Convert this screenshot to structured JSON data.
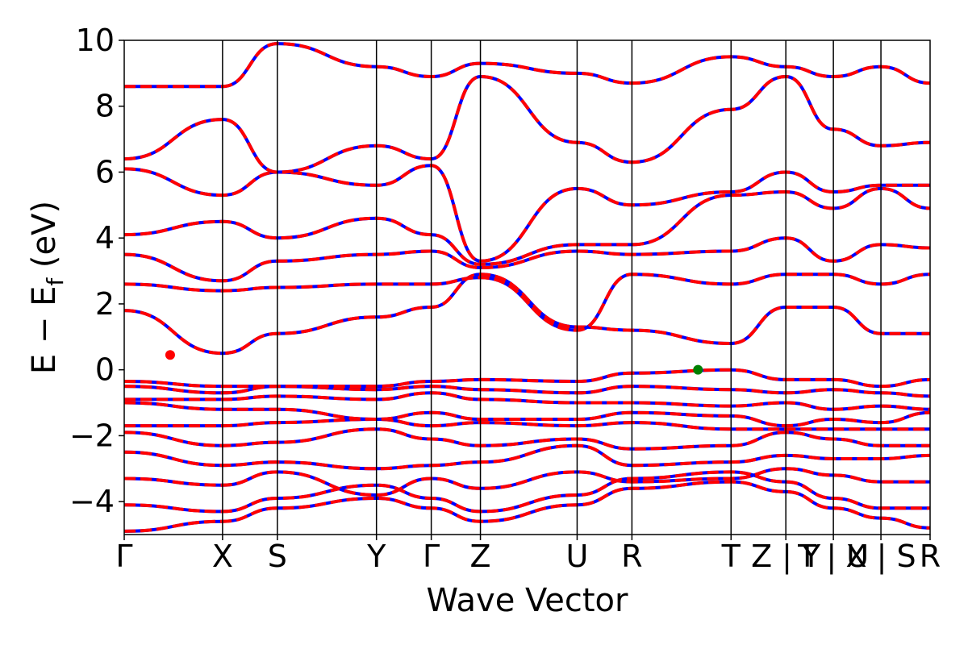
{
  "chart_data": {
    "type": "line",
    "xlabel": "Wave Vector",
    "ylabel": "E − E",
    "ylabel_subscript": "f",
    "ylabel_unit": "(eV)",
    "ylim": [
      -5,
      10
    ],
    "yticks": [
      -4,
      -2,
      0,
      2,
      4,
      6,
      8,
      10
    ],
    "ytick_labels": [
      "−4",
      "−2",
      "0",
      "2",
      "4",
      "6",
      "8",
      "10"
    ],
    "xlim": [
      0,
      1
    ],
    "grid": false,
    "legend": "none",
    "high_symmetry_points": [
      {
        "label": "Γ",
        "x": 0.0
      },
      {
        "label": "X",
        "x": 0.122
      },
      {
        "label": "S",
        "x": 0.19
      },
      {
        "label": "Y",
        "x": 0.313
      },
      {
        "label": "Γ",
        "x": 0.381
      },
      {
        "label": "Z",
        "x": 0.442
      },
      {
        "label": "U",
        "x": 0.562
      },
      {
        "label": "R",
        "x": 0.63
      },
      {
        "label": "T",
        "x": 0.753
      },
      {
        "label": "Z | Y",
        "x": 0.821
      },
      {
        "label": "T | U",
        "x": 0.88
      },
      {
        "label": "X | S",
        "x": 0.939
      },
      {
        "label": "R",
        "x": 1.0
      }
    ],
    "series_colors": {
      "primary": "#ff0000",
      "overlay": "#0000ff"
    },
    "markers": [
      {
        "name": "cbm",
        "x": 0.057,
        "y": 0.45,
        "color": "#ff0000"
      },
      {
        "name": "vbm",
        "x": 0.712,
        "y": 0.0,
        "color": "#008000"
      }
    ],
    "bands": [
      [
        -4.9,
        -4.6,
        -4.2,
        -3.9,
        -4.2,
        -4.6,
        -4.1,
        -3.6,
        -3.4,
        -3.7,
        -4.2,
        -4.5,
        -4.8
      ],
      [
        -4.1,
        -4.3,
        -3.9,
        -3.5,
        -3.9,
        -4.3,
        -3.8,
        -3.3,
        -3.1,
        -3.4,
        -3.9,
        -4.2,
        -4.2
      ],
      [
        -3.3,
        -3.5,
        -3.1,
        -3.8,
        -3.3,
        -3.6,
        -3.1,
        -3.4,
        -3.3,
        -3.0,
        -3.2,
        -3.4,
        -3.4
      ],
      [
        -2.5,
        -2.9,
        -2.8,
        -3.0,
        -2.9,
        -2.8,
        -2.3,
        -2.9,
        -2.8,
        -2.6,
        -2.7,
        -2.7,
        -2.6
      ],
      [
        -1.9,
        -2.3,
        -2.2,
        -1.8,
        -2.1,
        -2.3,
        -2.1,
        -2.4,
        -2.3,
        -1.9,
        -2.1,
        -2.3,
        -2.3
      ],
      [
        -1.7,
        -1.7,
        -1.6,
        -1.5,
        -1.7,
        -1.6,
        -1.7,
        -1.6,
        -1.8,
        -1.8,
        -1.8,
        -1.8,
        -1.8
      ],
      [
        -1.0,
        -1.2,
        -1.2,
        -1.5,
        -1.3,
        -1.5,
        -1.5,
        -1.3,
        -1.4,
        -1.7,
        -1.5,
        -1.6,
        -1.3
      ],
      [
        -0.9,
        -0.9,
        -0.8,
        -0.9,
        -0.7,
        -0.9,
        -1.0,
        -1.0,
        -1.1,
        -1.0,
        -1.2,
        -1.1,
        -1.2
      ],
      [
        -0.5,
        -0.7,
        -0.5,
        -0.6,
        -0.5,
        -0.6,
        -0.7,
        -0.5,
        -0.6,
        -0.7,
        -0.6,
        -0.7,
        -0.8
      ],
      [
        -0.35,
        -0.5,
        -0.5,
        -0.5,
        -0.35,
        -0.3,
        -0.35,
        -0.1,
        0.0,
        -0.3,
        -0.3,
        -0.5,
        -0.3
      ],
      [
        1.8,
        0.5,
        1.1,
        1.6,
        1.9,
        2.9,
        1.3,
        1.2,
        0.8,
        1.9,
        1.9,
        1.1,
        1.1
      ],
      [
        2.6,
        2.4,
        2.5,
        2.6,
        2.6,
        2.8,
        1.2,
        2.9,
        2.6,
        2.9,
        2.9,
        2.6,
        2.9
      ],
      [
        3.5,
        2.7,
        3.3,
        3.5,
        3.6,
        3.1,
        3.6,
        3.5,
        3.6,
        4.0,
        3.3,
        3.8,
        3.7
      ],
      [
        4.1,
        4.5,
        4.0,
        4.6,
        4.1,
        3.2,
        3.8,
        3.8,
        5.3,
        5.4,
        4.9,
        5.5,
        4.9
      ],
      [
        6.1,
        5.3,
        6.0,
        5.6,
        6.2,
        3.3,
        5.5,
        5.0,
        5.4,
        6.0,
        5.4,
        5.6,
        5.6
      ],
      [
        6.4,
        7.6,
        6.0,
        6.8,
        6.4,
        8.9,
        6.9,
        6.3,
        7.9,
        8.9,
        7.3,
        6.8,
        6.9
      ],
      [
        8.6,
        8.6,
        9.9,
        9.2,
        8.9,
        9.3,
        9.0,
        8.7,
        9.5,
        9.2,
        8.9,
        9.2,
        8.7
      ]
    ]
  }
}
